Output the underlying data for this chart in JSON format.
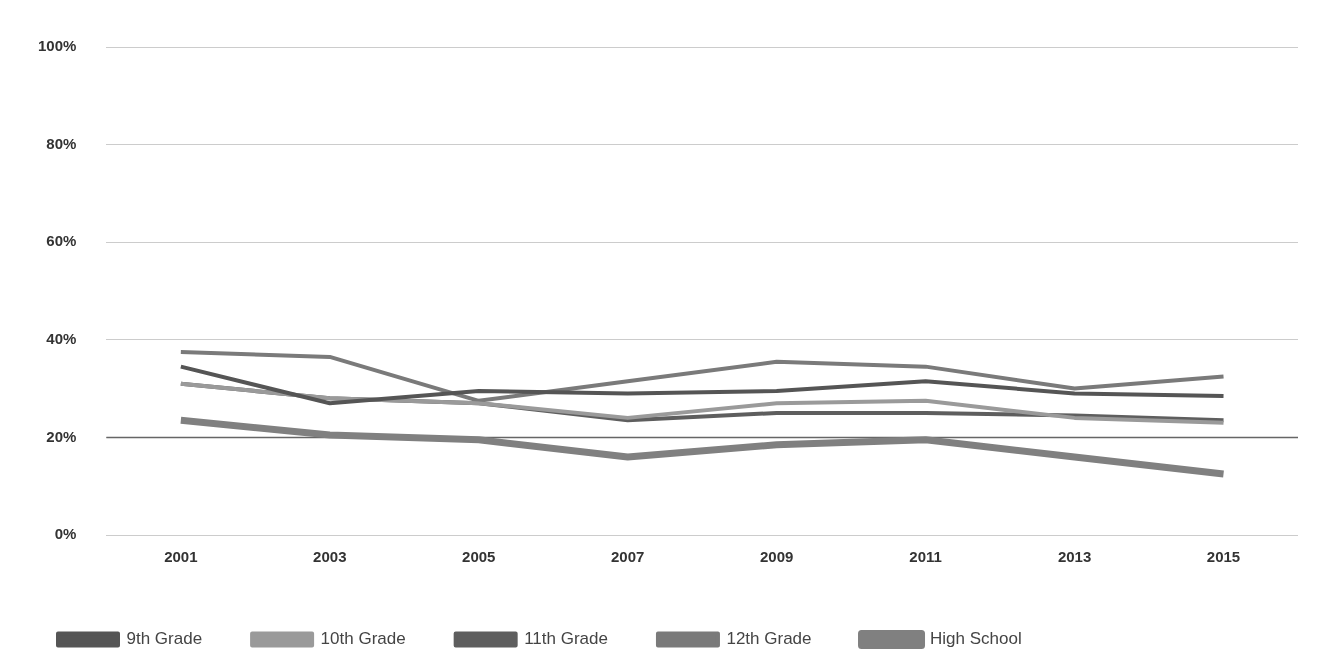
{
  "chart_data": {
    "type": "line",
    "categories": [
      "2001",
      "2003",
      "2005",
      "2007",
      "2009",
      "2011",
      "2013",
      "2015"
    ],
    "series": [
      {
        "name": "9th Grade",
        "color": "#555555",
        "values": [
          34.5,
          27,
          29.5,
          29,
          29.5,
          31.5,
          29,
          28.5
        ]
      },
      {
        "name": "10th Grade",
        "color": "#9a9a9a",
        "values": [
          31,
          28,
          27,
          24,
          27,
          27.5,
          24,
          23
        ]
      },
      {
        "name": "11th Grade",
        "color": "#5e5e5e",
        "values": [
          31,
          28,
          27,
          23.5,
          25,
          25,
          24.5,
          23.5
        ]
      },
      {
        "name": "12th Grade",
        "color": "#7a7a7a",
        "values": [
          37.5,
          36.5,
          27.5,
          31.5,
          35.5,
          34.5,
          30,
          32.5
        ]
      },
      {
        "name": "High School",
        "color": "#808080",
        "values": [
          23.5,
          20.5,
          19.5,
          16,
          18.5,
          19.5,
          16,
          12.5
        ]
      }
    ],
    "ylim": [
      0,
      100
    ],
    "yticks": [
      {
        "value": 0,
        "label": "0%"
      },
      {
        "value": 20,
        "label": "20%"
      },
      {
        "value": 40,
        "label": "40%"
      },
      {
        "value": 60,
        "label": "60%"
      },
      {
        "value": 80,
        "label": "80%"
      },
      {
        "value": 100,
        "label": "100%"
      }
    ],
    "ref_lines": [
      {
        "axis": "y",
        "value": 20,
        "color": "#666666"
      }
    ],
    "grid": "y",
    "legend": "bottom left",
    "marker": "none",
    "line_style": "solid"
  }
}
